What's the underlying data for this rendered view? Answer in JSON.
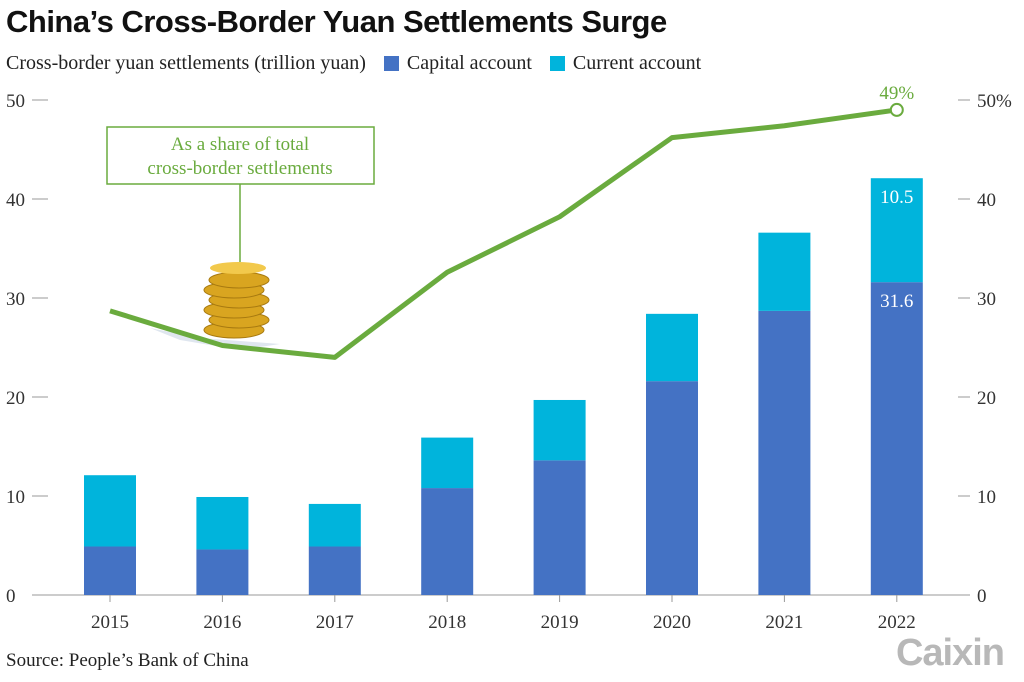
{
  "title": "China’s Cross-Border Yuan Settlements Surge",
  "source": "Source: People’s Bank of China",
  "logo": "Caixin",
  "colors": {
    "capital": "#4472c4",
    "current": "#00b4dc",
    "share": "#6aab3e"
  },
  "chart_data": {
    "type": "bar",
    "stacked": true,
    "title": "China’s Cross-Border Yuan Settlements Surge",
    "ylabel": "Cross-border yuan settlements (trillion yuan)",
    "categories": [
      "2015",
      "2016",
      "2017",
      "2018",
      "2019",
      "2020",
      "2021",
      "2022"
    ],
    "ylim": [
      0,
      50
    ],
    "yticks": [
      "0",
      "10",
      "20",
      "30",
      "40",
      "50"
    ],
    "y2lim": [
      0,
      50
    ],
    "y2ticks": [
      "0",
      "10",
      "20",
      "30",
      "40",
      "50%"
    ],
    "series": [
      {
        "name": "Capital account",
        "values": [
          4.9,
          4.6,
          4.9,
          10.8,
          13.6,
          21.6,
          28.7,
          31.6
        ]
      },
      {
        "name": "Current account",
        "values": [
          7.2,
          5.3,
          4.3,
          5.1,
          6.1,
          6.8,
          7.9,
          10.5
        ]
      }
    ],
    "line": {
      "name": "As a share of total cross-border settlements",
      "axis": "right",
      "unit": "%",
      "values": [
        28.7,
        25.2,
        24.0,
        32.6,
        38.2,
        46.2,
        47.4,
        49
      ]
    },
    "data_labels": {
      "capital_2022": "31.6",
      "current_2022": "10.5",
      "share_2022": "49%"
    },
    "annotation": [
      "As a share of total",
      "cross-border settlements"
    ],
    "legend": "top"
  }
}
